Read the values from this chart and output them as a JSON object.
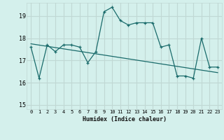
{
  "xlabel": "Humidex (Indice chaleur)",
  "ylabel": "",
  "xlim": [
    -0.5,
    23.5
  ],
  "ylim": [
    14.8,
    19.6
  ],
  "yticks": [
    15,
    16,
    17,
    18,
    19
  ],
  "xticks": [
    0,
    1,
    2,
    3,
    4,
    5,
    6,
    7,
    8,
    9,
    10,
    11,
    12,
    13,
    14,
    15,
    16,
    17,
    18,
    19,
    20,
    21,
    22,
    23
  ],
  "bg_color": "#d4f0ec",
  "grid_color": "#c0d8d4",
  "line_color": "#1a6b6b",
  "data_x": [
    0,
    1,
    2,
    3,
    4,
    5,
    6,
    7,
    8,
    9,
    10,
    11,
    12,
    13,
    14,
    15,
    16,
    17,
    18,
    19,
    20,
    21,
    22,
    23
  ],
  "data_y": [
    17.6,
    16.2,
    17.7,
    17.4,
    17.7,
    17.7,
    17.6,
    16.9,
    17.4,
    19.2,
    19.4,
    18.8,
    18.6,
    18.7,
    18.7,
    18.7,
    17.6,
    17.7,
    16.3,
    16.3,
    16.2,
    18.0,
    16.7,
    16.7
  ],
  "trend_x": [
    0,
    23
  ],
  "trend_y": [
    17.75,
    16.45
  ]
}
